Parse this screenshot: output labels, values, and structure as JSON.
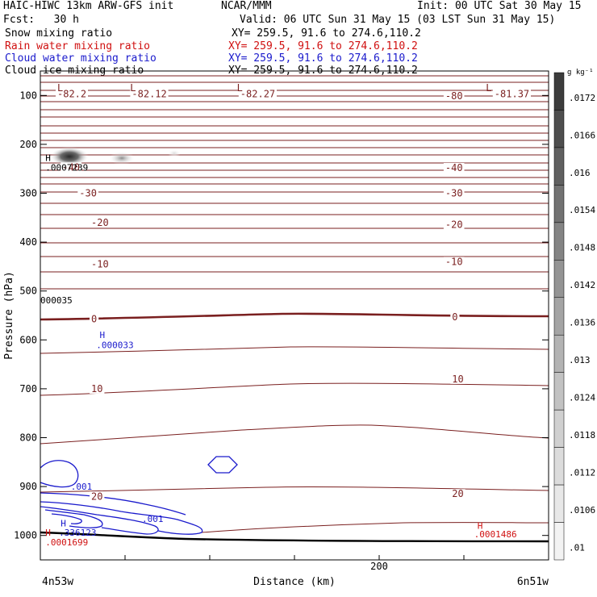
{
  "header": {
    "title_left": "HAIC-HIWC 13km ARW-GFS init",
    "org": "NCAR/MMM",
    "init": "Init: 00 UTC Sat 30 May 15",
    "fcst": "Fcst:   30 h",
    "valid": "Valid: 06 UTC Sun 31 May 15 (03 LST Sun 31 May 15)"
  },
  "fields": [
    {
      "label": "Snow mixing ratio",
      "xy": "XY= 259.5, 91.6 to 274.6,110.2",
      "color": "#000000"
    },
    {
      "label": "Rain water mixing ratio",
      "xy": "XY= 259.5, 91.6 to 274.6,110.2",
      "color": "#d01010"
    },
    {
      "label": "Cloud water mixing ratio",
      "xy": "XY= 259.5, 91.6 to 274.6,110.2",
      "color": "#1a1acc"
    },
    {
      "label": "Cloud ice mixing ratio",
      "xy": "XY= 259.5, 91.6 to 274.6,110.2",
      "color": "#000000"
    }
  ],
  "chart_data": {
    "type": "contour",
    "ylabel": "Pressure (hPa)",
    "xlabel": "Distance (km)",
    "ylim": [
      1050,
      50
    ],
    "xlim": [
      0,
      300
    ],
    "y_ticks": [
      100,
      200,
      300,
      400,
      500,
      600,
      700,
      800,
      900,
      1000
    ],
    "x_ticks": [
      {
        "value": 200,
        "label": "200"
      }
    ],
    "x_end_labels": {
      "left": "4n53w",
      "right": "6n51w"
    },
    "colorbar": {
      "units": "g kg⁻¹",
      "levels": [
        ".0172",
        ".0166",
        ".016",
        ".0154",
        ".0148",
        ".0142",
        ".0136",
        ".013",
        ".0124",
        ".0118",
        ".0112",
        ".0106",
        ".01"
      ],
      "colors": [
        "#3c3c3c",
        "#4e4e4e",
        "#606060",
        "#727272",
        "#848484",
        "#949494",
        "#a4a4a4",
        "#b3b3b3",
        "#c2c2c2",
        "#d0d0d0",
        "#dcdcdc",
        "#e8e8e8",
        "#f3f3f3"
      ]
    },
    "temperature_labels": [
      {
        "text": "-82.2",
        "x": 10,
        "p": 102
      },
      {
        "text": "-82.12",
        "x": 54,
        "p": 102
      },
      {
        "text": "-82.27",
        "x": 118,
        "p": 102
      },
      {
        "text": "-80",
        "x": 239,
        "p": 106
      },
      {
        "text": "-81.37",
        "x": 268,
        "p": 102
      },
      {
        "text": "-40",
        "x": 13,
        "p": 252
      },
      {
        "text": "-40",
        "x": 239,
        "p": 253
      },
      {
        "text": "-30",
        "x": 23,
        "p": 305
      },
      {
        "text": "-30",
        "x": 239,
        "p": 305
      },
      {
        "text": "-20",
        "x": 30,
        "p": 365
      },
      {
        "text": "-20",
        "x": 239,
        "p": 369
      },
      {
        "text": "-10",
        "x": 30,
        "p": 450
      },
      {
        "text": "-10",
        "x": 239,
        "p": 445
      },
      {
        "text": "0",
        "x": 30,
        "p": 562
      },
      {
        "text": "0",
        "x": 243,
        "p": 558
      },
      {
        "text": "10",
        "x": 30,
        "p": 705
      },
      {
        "text": "10",
        "x": 243,
        "p": 685
      },
      {
        "text": "20",
        "x": 30,
        "p": 925
      },
      {
        "text": "20",
        "x": 243,
        "p": 920
      }
    ],
    "low_markers": [
      {
        "text": "L",
        "x": 10,
        "p": 85
      },
      {
        "text": "L",
        "x": 53,
        "p": 85
      },
      {
        "text": "L",
        "x": 116,
        "p": 85
      },
      {
        "text": "L",
        "x": 263,
        "p": 85
      }
    ],
    "annotations": [
      {
        "text": "H",
        "x": 3,
        "p": 227,
        "color": "#000000"
      },
      {
        "text": ".0007239",
        "x": 3,
        "p": 247,
        "color": "#000000"
      },
      {
        "text": "000035",
        "x": 0,
        "p": 519,
        "color": "#000000"
      },
      {
        "text": "H",
        "x": 35,
        "p": 590,
        "color": "#1a1acc"
      },
      {
        "text": ".000033",
        "x": 33,
        "p": 610,
        "color": "#1a1acc"
      },
      {
        "text": ".001",
        "x": 18,
        "p": 900,
        "color": "#1a1acc"
      },
      {
        "text": ".001",
        "x": 60,
        "p": 966,
        "color": "#1a1acc"
      },
      {
        "text": "H",
        "x": 12,
        "p": 975,
        "color": "#1a1acc"
      },
      {
        "text": ".336123",
        "x": 11,
        "p": 994,
        "color": "#1a1acc"
      },
      {
        "text": "H",
        "x": 3,
        "p": 994,
        "color": "#d01010"
      },
      {
        "text": ".0001699",
        "x": 3,
        "p": 1014,
        "color": "#d01010"
      },
      {
        "text": "H",
        "x": 258,
        "p": 980,
        "color": "#d01010"
      },
      {
        "text": ".0001486",
        "x": 256,
        "p": 997,
        "color": "#d01010"
      }
    ]
  }
}
